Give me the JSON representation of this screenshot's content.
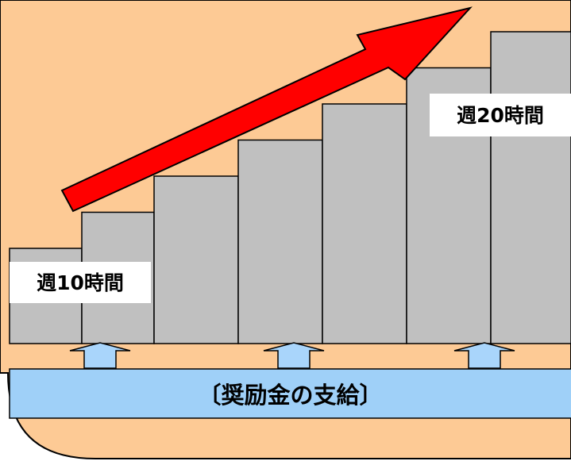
{
  "labels": {
    "start": "週10時間",
    "end": "週20時間"
  },
  "banner": {
    "text": "〔奨励金の支給〕"
  },
  "bar_levels": [
    1,
    2,
    3,
    4,
    5,
    6,
    7
  ],
  "colors": {
    "background_panel": "#fdca95",
    "bar": "#c0c0c0",
    "arrow": "#ff0000",
    "banner": "#9fd0f8",
    "small_arrow": "#a9d5fb",
    "outline": "#000000"
  }
}
